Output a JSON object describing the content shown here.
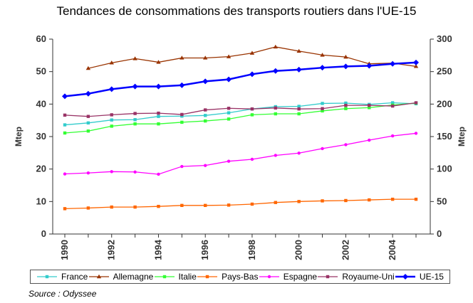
{
  "chart_data": {
    "type": "line",
    "title": "Tendances de consommations des transports routiers dans l'UE-15",
    "ylabel": "Mtep",
    "y2label": "Mtep",
    "ylim": [
      0,
      60
    ],
    "y2lim": [
      0,
      300
    ],
    "yticks": [
      "0",
      "10",
      "20",
      "30",
      "40",
      "50",
      "60"
    ],
    "y2ticks": [
      "0",
      "50",
      "100",
      "150",
      "200",
      "250",
      "300"
    ],
    "xticks": [
      "1990",
      "1992",
      "1994",
      "1996",
      "1998",
      "2000",
      "2002",
      "2004"
    ],
    "x": [
      1990,
      1991,
      1992,
      1993,
      1994,
      1995,
      1996,
      1997,
      1998,
      1999,
      2000,
      2001,
      2002,
      2003,
      2004,
      2005
    ],
    "series": [
      {
        "name": "France",
        "color": "#33cccc",
        "marker": "square",
        "axis": "left",
        "values": [
          33.6,
          34.2,
          35.1,
          35.2,
          36.2,
          36.3,
          36.5,
          37.3,
          38.5,
          39.2,
          39.3,
          40.2,
          40.3,
          39.9,
          40.4,
          40.1
        ]
      },
      {
        "name": "Allemagne",
        "color": "#993300",
        "marker": "triangle",
        "axis": "left",
        "values": [
          null,
          51.0,
          52.7,
          54.0,
          52.9,
          54.2,
          54.2,
          54.6,
          55.7,
          57.6,
          56.3,
          55.1,
          54.5,
          52.4,
          52.6,
          51.6
        ]
      },
      {
        "name": "Italie",
        "color": "#33ff33",
        "marker": "square",
        "axis": "left",
        "values": [
          31.1,
          31.7,
          33.2,
          33.9,
          33.9,
          34.4,
          34.8,
          35.4,
          36.7,
          37.0,
          37.0,
          37.9,
          38.6,
          38.9,
          39.7,
          40.3
        ]
      },
      {
        "name": "Pays-Bas",
        "color": "#ff6600",
        "marker": "square",
        "axis": "left",
        "values": [
          7.8,
          8.0,
          8.3,
          8.3,
          8.5,
          8.8,
          8.8,
          8.9,
          9.2,
          9.7,
          10.0,
          10.2,
          10.3,
          10.5,
          10.7,
          10.7
        ]
      },
      {
        "name": "Espagne",
        "color": "#ff00ff",
        "marker": "circle",
        "axis": "left",
        "values": [
          18.5,
          18.8,
          19.2,
          19.1,
          18.4,
          20.8,
          21.1,
          22.4,
          23.0,
          24.2,
          24.9,
          26.3,
          27.5,
          28.9,
          30.2,
          31.0
        ]
      },
      {
        "name": "Royaume-Uni",
        "color": "#993366",
        "marker": "square",
        "axis": "left",
        "values": [
          36.6,
          36.2,
          36.7,
          37.1,
          37.2,
          36.8,
          38.2,
          38.7,
          38.5,
          38.8,
          38.5,
          38.6,
          39.6,
          39.6,
          39.4,
          40.4
        ]
      },
      {
        "name": "UE-15",
        "color": "#0000ff",
        "marker": "diamond",
        "axis": "right",
        "values": [
          212,
          216,
          223,
          227,
          227,
          229,
          235,
          238,
          246,
          251,
          253,
          256,
          258,
          259,
          262,
          264
        ]
      }
    ],
    "legend_position": "bottom",
    "grid": false
  },
  "source_note": "Source : Odyssee"
}
